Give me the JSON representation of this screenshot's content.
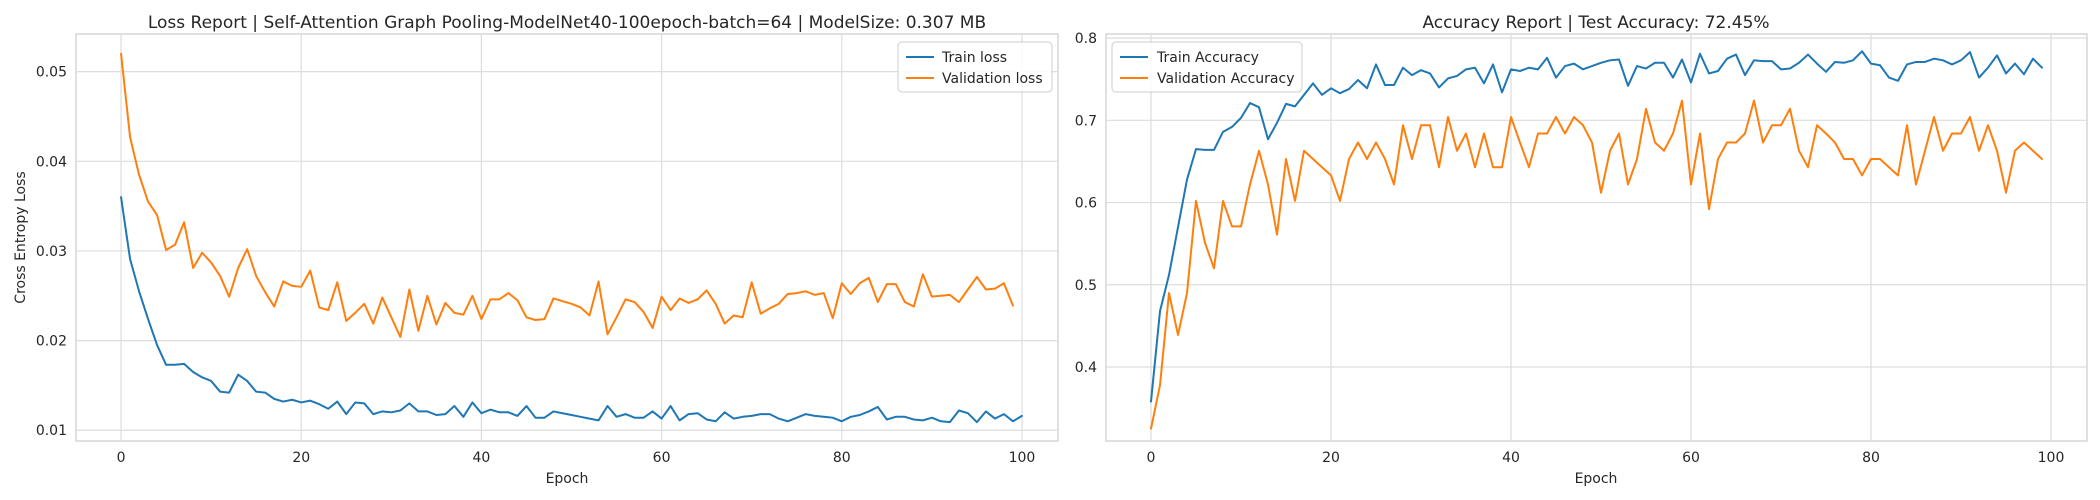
{
  "chart_data": [
    {
      "type": "line",
      "title": "Loss Report | Self-Attention Graph Pooling-ModelNet40-100epoch-batch=64 | ModelSize: 0.307 MB",
      "xlabel": "Epoch",
      "ylabel": "Cross Entropy Loss",
      "xlim": [
        -5,
        104
      ],
      "ylim": [
        0.0088,
        0.0542
      ],
      "xticks": [
        0,
        20,
        40,
        60,
        80,
        100
      ],
      "xtick_labels": [
        "0",
        "20",
        "40",
        "60",
        "80",
        "100"
      ],
      "yticks": [
        0.01,
        0.02,
        0.03,
        0.04,
        0.05
      ],
      "ytick_labels": [
        "0.01",
        "0.02",
        "0.03",
        "0.04",
        "0.05"
      ],
      "grid": true,
      "legend_position": "top-right",
      "series": [
        {
          "name": "Train loss",
          "color": "#1f77b4",
          "values": [
            0.036,
            0.0291,
            0.0255,
            0.0224,
            0.0195,
            0.0173,
            0.0173,
            0.0174,
            0.0165,
            0.0159,
            0.0155,
            0.0143,
            0.0142,
            0.0162,
            0.0155,
            0.0143,
            0.0142,
            0.0135,
            0.0132,
            0.0134,
            0.0131,
            0.0133,
            0.0129,
            0.0124,
            0.0132,
            0.0118,
            0.0131,
            0.013,
            0.0118,
            0.0121,
            0.012,
            0.0122,
            0.013,
            0.0121,
            0.0121,
            0.0117,
            0.0118,
            0.0127,
            0.0115,
            0.0131,
            0.0119,
            0.0123,
            0.012,
            0.012,
            0.0116,
            0.0127,
            0.0114,
            0.0114,
            0.0121,
            0.0119,
            0.0117,
            0.0115,
            0.0113,
            0.0111,
            0.0127,
            0.0115,
            0.0118,
            0.0114,
            0.0114,
            0.0121,
            0.0113,
            0.0127,
            0.0111,
            0.0118,
            0.0119,
            0.0112,
            0.011,
            0.012,
            0.0113,
            0.0115,
            0.0116,
            0.0118,
            0.0118,
            0.0113,
            0.011,
            0.0114,
            0.0118,
            0.0116,
            0.0115,
            0.0114,
            0.011,
            0.0115,
            0.0117,
            0.0121,
            0.0126,
            0.0112,
            0.0115,
            0.0115,
            0.0112,
            0.0111,
            0.0114,
            0.011,
            0.0109,
            0.0122,
            0.0119,
            0.0109,
            0.0121,
            0.0113,
            0.0118,
            0.011,
            0.0116
          ]
        },
        {
          "name": "Validation loss",
          "color": "#ff7f0e",
          "values": [
            0.052,
            0.0427,
            0.0385,
            0.0355,
            0.034,
            0.0301,
            0.0307,
            0.0332,
            0.0281,
            0.0298,
            0.0287,
            0.0272,
            0.0249,
            0.0281,
            0.0302,
            0.0272,
            0.0254,
            0.0238,
            0.0266,
            0.0261,
            0.026,
            0.0278,
            0.0237,
            0.0234,
            0.0265,
            0.0222,
            0.0231,
            0.0241,
            0.0219,
            0.0248,
            0.0226,
            0.0204,
            0.0257,
            0.0211,
            0.025,
            0.0218,
            0.0242,
            0.0231,
            0.0229,
            0.025,
            0.0224,
            0.0246,
            0.0246,
            0.0253,
            0.0245,
            0.0226,
            0.0223,
            0.0224,
            0.0247,
            0.0244,
            0.0241,
            0.0237,
            0.0228,
            0.0266,
            0.0207,
            0.0226,
            0.0246,
            0.0243,
            0.0232,
            0.0214,
            0.0249,
            0.0234,
            0.0247,
            0.0242,
            0.0246,
            0.0256,
            0.0241,
            0.0219,
            0.0228,
            0.0226,
            0.0265,
            0.023,
            0.0236,
            0.0241,
            0.0252,
            0.0253,
            0.0255,
            0.0251,
            0.0253,
            0.0225,
            0.0264,
            0.0252,
            0.0264,
            0.027,
            0.0243,
            0.0263,
            0.0263,
            0.0243,
            0.0238,
            0.0274,
            0.0249,
            0.025,
            0.0251,
            0.0243,
            0.0257,
            0.0271,
            0.0257,
            0.0258,
            0.0264,
            0.0239
          ]
        }
      ]
    },
    {
      "type": "line",
      "title": "Accuracy Report | Test Accuracy: 72.45%",
      "xlabel": "Epoch",
      "ylabel": "",
      "xlim": [
        -5,
        104
      ],
      "ylim": [
        0.31,
        0.805
      ],
      "xticks": [
        0,
        20,
        40,
        60,
        80,
        100
      ],
      "xtick_labels": [
        "0",
        "20",
        "40",
        "60",
        "80",
        "100"
      ],
      "yticks": [
        0.4,
        0.5,
        0.6,
        0.7,
        0.8
      ],
      "ytick_labels": [
        "0.4",
        "0.5",
        "0.6",
        "0.7",
        "0.8"
      ],
      "grid": true,
      "legend_position": "top-left",
      "series": [
        {
          "name": "Train Accuracy",
          "color": "#1f77b4",
          "values": [
            0.358,
            0.468,
            0.512,
            0.57,
            0.628,
            0.665,
            0.664,
            0.664,
            0.686,
            0.692,
            0.703,
            0.721,
            0.716,
            0.677,
            0.697,
            0.72,
            0.717,
            0.731,
            0.745,
            0.731,
            0.739,
            0.733,
            0.738,
            0.749,
            0.739,
            0.768,
            0.743,
            0.743,
            0.764,
            0.755,
            0.761,
            0.757,
            0.74,
            0.751,
            0.754,
            0.762,
            0.764,
            0.745,
            0.768,
            0.734,
            0.762,
            0.76,
            0.764,
            0.762,
            0.776,
            0.752,
            0.766,
            0.769,
            0.762,
            0.766,
            0.77,
            0.773,
            0.774,
            0.742,
            0.766,
            0.763,
            0.77,
            0.77,
            0.752,
            0.774,
            0.746,
            0.781,
            0.757,
            0.76,
            0.775,
            0.78,
            0.755,
            0.773,
            0.772,
            0.772,
            0.762,
            0.763,
            0.77,
            0.78,
            0.769,
            0.759,
            0.771,
            0.77,
            0.773,
            0.784,
            0.769,
            0.767,
            0.752,
            0.748,
            0.768,
            0.771,
            0.771,
            0.775,
            0.773,
            0.768,
            0.773,
            0.783,
            0.752,
            0.764,
            0.779,
            0.757,
            0.769,
            0.756,
            0.775,
            0.764
          ]
        },
        {
          "name": "Validation Accuracy",
          "color": "#ff7f0e",
          "values": [
            0.325,
            0.378,
            0.49,
            0.439,
            0.49,
            0.602,
            0.551,
            0.52,
            0.602,
            0.571,
            0.571,
            0.622,
            0.663,
            0.622,
            0.561,
            0.653,
            0.602,
            0.663,
            0.653,
            0.643,
            0.633,
            0.602,
            0.653,
            0.673,
            0.653,
            0.673,
            0.653,
            0.622,
            0.694,
            0.653,
            0.694,
            0.694,
            0.643,
            0.704,
            0.663,
            0.684,
            0.643,
            0.684,
            0.643,
            0.643,
            0.704,
            0.673,
            0.643,
            0.684,
            0.684,
            0.704,
            0.684,
            0.704,
            0.694,
            0.673,
            0.612,
            0.663,
            0.684,
            0.622,
            0.653,
            0.714,
            0.673,
            0.663,
            0.684,
            0.724,
            0.622,
            0.684,
            0.592,
            0.653,
            0.673,
            0.673,
            0.684,
            0.724,
            0.673,
            0.694,
            0.694,
            0.714,
            0.663,
            0.643,
            0.694,
            0.684,
            0.673,
            0.653,
            0.653,
            0.633,
            0.653,
            0.653,
            0.643,
            0.633,
            0.694,
            0.622,
            0.663,
            0.704,
            0.663,
            0.684,
            0.684,
            0.704,
            0.663,
            0.694,
            0.663,
            0.612,
            0.663,
            0.673,
            0.663,
            0.653
          ]
        }
      ]
    }
  ]
}
